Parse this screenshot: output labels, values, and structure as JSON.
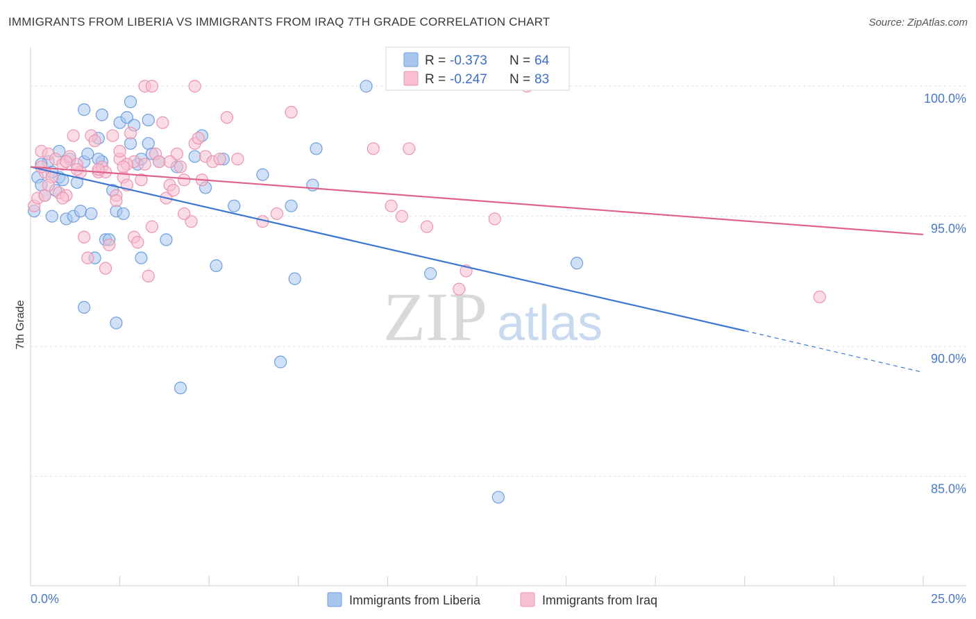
{
  "title": "IMMIGRANTS FROM LIBERIA VS IMMIGRANTS FROM IRAQ 7TH GRADE CORRELATION CHART",
  "source": "Source: ZipAtlas.com",
  "watermark": {
    "zip": "ZIP",
    "atlas": "atlas"
  },
  "colors": {
    "liberia_fill": "#a9c7ee",
    "liberia_stroke": "#6f9fdc",
    "liberia_line": "#3a76d0",
    "iraq_fill": "#f7bfd0",
    "iraq_stroke": "#ea94b1",
    "iraq_line": "#e0608d",
    "grid": "#e0e0e0",
    "tick_text": "#4a78c4"
  },
  "legend": {
    "rows": [
      {
        "r_label": "R = ",
        "r_value": "-0.373",
        "n_label": "N = ",
        "n_value": "64"
      },
      {
        "r_label": "R = ",
        "r_value": "-0.247",
        "n_label": "N = ",
        "n_value": "83"
      }
    ]
  },
  "chart_data": {
    "type": "scatter",
    "title": "IMMIGRANTS FROM LIBERIA VS IMMIGRANTS FROM IRAQ 7TH GRADE CORRELATION CHART",
    "xlabel": "",
    "ylabel": "7th Grade",
    "xlim": [
      0,
      25
    ],
    "ylim": [
      80.8,
      101.5
    ],
    "x_tick_labels": [
      "0.0%",
      "25.0%"
    ],
    "y_ticks": [
      100,
      95,
      90,
      85
    ],
    "y_tick_labels": [
      "100.0%",
      "95.0%",
      "90.0%",
      "85.0%"
    ],
    "grid": true,
    "legend_position": "top-center",
    "series": [
      {
        "name": "Immigrants from Liberia",
        "r": -0.373,
        "n": 64,
        "trend": {
          "x_start": 0,
          "y_start": 96.9,
          "x_solid_end": 20,
          "y_solid_end": 90.6,
          "x_end": 25,
          "y_end": 89.0
        },
        "points": [
          [
            0.1,
            95.2
          ],
          [
            0.2,
            96.5
          ],
          [
            0.3,
            96.2
          ],
          [
            0.4,
            95.8
          ],
          [
            0.5,
            97.1
          ],
          [
            0.6,
            95.0
          ],
          [
            0.7,
            96.0
          ],
          [
            0.8,
            96.5
          ],
          [
            0.8,
            97.5
          ],
          [
            0.9,
            96.4
          ],
          [
            1.0,
            94.9
          ],
          [
            1.1,
            97.2
          ],
          [
            1.2,
            95.0
          ],
          [
            1.3,
            96.3
          ],
          [
            1.4,
            95.2
          ],
          [
            1.5,
            97.1
          ],
          [
            1.5,
            99.1
          ],
          [
            1.6,
            97.4
          ],
          [
            1.7,
            95.1
          ],
          [
            1.8,
            93.4
          ],
          [
            1.9,
            98.0
          ],
          [
            2.0,
            97.1
          ],
          [
            2.0,
            98.9
          ],
          [
            2.1,
            94.1
          ],
          [
            2.2,
            94.1
          ],
          [
            2.3,
            96.0
          ],
          [
            2.4,
            95.2
          ],
          [
            2.5,
            98.6
          ],
          [
            2.6,
            95.1
          ],
          [
            2.7,
            98.8
          ],
          [
            2.8,
            97.8
          ],
          [
            2.8,
            99.4
          ],
          [
            2.9,
            98.5
          ],
          [
            3.0,
            97.0
          ],
          [
            3.1,
            97.2
          ],
          [
            3.1,
            93.4
          ],
          [
            3.3,
            97.8
          ],
          [
            3.3,
            98.7
          ],
          [
            3.4,
            97.4
          ],
          [
            3.6,
            97.1
          ],
          [
            3.8,
            94.1
          ],
          [
            4.1,
            96.9
          ],
          [
            4.2,
            88.4
          ],
          [
            4.6,
            97.3
          ],
          [
            4.8,
            98.1
          ],
          [
            4.9,
            96.1
          ],
          [
            5.2,
            93.1
          ],
          [
            5.4,
            97.2
          ],
          [
            5.7,
            95.4
          ],
          [
            6.5,
            96.6
          ],
          [
            7.0,
            89.4
          ],
          [
            7.3,
            95.4
          ],
          [
            7.4,
            92.6
          ],
          [
            7.9,
            96.2
          ],
          [
            8.0,
            97.6
          ],
          [
            9.4,
            100.0
          ],
          [
            11.2,
            92.8
          ],
          [
            13.1,
            84.2
          ],
          [
            15.3,
            93.2
          ],
          [
            1.5,
            91.5
          ],
          [
            2.4,
            90.9
          ],
          [
            0.6,
            96.7
          ],
          [
            1.9,
            97.2
          ],
          [
            0.3,
            97.0
          ]
        ]
      },
      {
        "name": "Immigrants from Iraq",
        "r": -0.247,
        "n": 83,
        "trend": {
          "x_start": 0,
          "y_start": 96.9,
          "x_end": 25,
          "y_end": 94.3
        },
        "points": [
          [
            0.1,
            95.4
          ],
          [
            0.2,
            95.7
          ],
          [
            0.3,
            97.5
          ],
          [
            0.4,
            96.7
          ],
          [
            0.4,
            95.8
          ],
          [
            0.5,
            97.4
          ],
          [
            0.6,
            96.5
          ],
          [
            0.7,
            97.2
          ],
          [
            0.8,
            95.9
          ],
          [
            0.9,
            97.0
          ],
          [
            1.0,
            95.8
          ],
          [
            1.1,
            97.3
          ],
          [
            1.2,
            98.1
          ],
          [
            1.3,
            97.0
          ],
          [
            1.4,
            96.7
          ],
          [
            1.5,
            94.2
          ],
          [
            1.6,
            93.4
          ],
          [
            1.7,
            98.1
          ],
          [
            1.8,
            97.9
          ],
          [
            1.9,
            96.7
          ],
          [
            2.0,
            96.9
          ],
          [
            2.1,
            96.7
          ],
          [
            2.2,
            93.9
          ],
          [
            2.3,
            98.1
          ],
          [
            2.4,
            95.8
          ],
          [
            2.4,
            95.6
          ],
          [
            2.5,
            97.2
          ],
          [
            2.5,
            97.5
          ],
          [
            2.6,
            96.5
          ],
          [
            2.7,
            96.2
          ],
          [
            2.8,
            98.2
          ],
          [
            2.9,
            97.1
          ],
          [
            2.9,
            94.2
          ],
          [
            3.0,
            94.0
          ],
          [
            3.1,
            96.4
          ],
          [
            3.2,
            97.0
          ],
          [
            3.3,
            92.7
          ],
          [
            3.4,
            94.6
          ],
          [
            3.5,
            97.4
          ],
          [
            3.6,
            97.1
          ],
          [
            3.7,
            98.6
          ],
          [
            3.8,
            95.7
          ],
          [
            3.9,
            96.2
          ],
          [
            4.0,
            96.0
          ],
          [
            4.1,
            97.4
          ],
          [
            4.2,
            96.9
          ],
          [
            4.3,
            96.4
          ],
          [
            4.5,
            94.8
          ],
          [
            4.6,
            97.8
          ],
          [
            4.7,
            98.0
          ],
          [
            4.8,
            96.4
          ],
          [
            4.9,
            97.3
          ],
          [
            5.1,
            97.1
          ],
          [
            5.3,
            97.2
          ],
          [
            5.5,
            98.8
          ],
          [
            5.8,
            97.2
          ],
          [
            6.5,
            94.8
          ],
          [
            6.9,
            95.1
          ],
          [
            7.3,
            99.0
          ],
          [
            9.6,
            97.6
          ],
          [
            10.1,
            95.4
          ],
          [
            10.4,
            95.0
          ],
          [
            10.6,
            97.6
          ],
          [
            11.1,
            94.6
          ],
          [
            12.0,
            92.2
          ],
          [
            12.2,
            92.9
          ],
          [
            13.0,
            94.9
          ],
          [
            13.9,
            100.0
          ],
          [
            22.1,
            91.9
          ],
          [
            3.2,
            100.0
          ],
          [
            3.4,
            100.0
          ],
          [
            4.6,
            100.0
          ],
          [
            0.5,
            96.2
          ],
          [
            1.0,
            97.1
          ],
          [
            1.9,
            96.8
          ],
          [
            2.7,
            97.0
          ],
          [
            3.9,
            97.1
          ],
          [
            4.3,
            95.1
          ],
          [
            2.1,
            93.0
          ],
          [
            0.3,
            96.9
          ],
          [
            1.3,
            96.8
          ],
          [
            2.6,
            96.9
          ],
          [
            0.9,
            95.7
          ]
        ]
      }
    ]
  },
  "bottom_legend": {
    "items": [
      {
        "label": "Immigrants from Liberia"
      },
      {
        "label": "Immigrants from Iraq"
      }
    ]
  }
}
